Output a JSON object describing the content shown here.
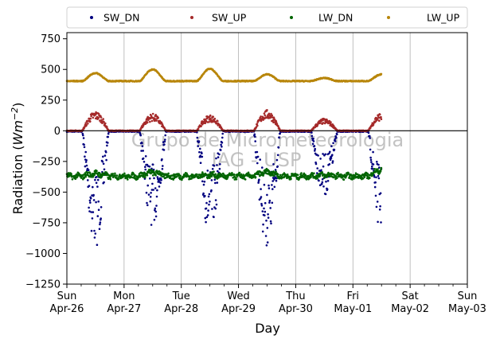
{
  "chart_data": {
    "type": "scatter",
    "title": "",
    "xlabel": "Day",
    "ylabel": "Radiation (Wm⁻²)",
    "ylabel_base": "Radiation (",
    "ylabel_unit": "Wm",
    "ylabel_exp": "−2",
    "ylabel_close": ")",
    "ylim": [
      -1250,
      800
    ],
    "yticks": [
      750,
      500,
      250,
      0,
      -250,
      -500,
      -750,
      -1000,
      -1250
    ],
    "ytick_labels": [
      "750",
      "500",
      "250",
      "0",
      "−250",
      "−500",
      "−750",
      "−1000",
      "−1250"
    ],
    "xlim_days": [
      0,
      7
    ],
    "xticks": [
      {
        "day": "Sun",
        "date": "Apr-26"
      },
      {
        "day": "Mon",
        "date": "Apr-27"
      },
      {
        "day": "Tue",
        "date": "Apr-28"
      },
      {
        "day": "Wed",
        "date": "Apr-29"
      },
      {
        "day": "Thu",
        "date": "Apr-30"
      },
      {
        "day": "Fri",
        "date": "May-01"
      },
      {
        "day": "Sat",
        "date": "May-02"
      },
      {
        "day": "Sun",
        "date": "May-03"
      }
    ],
    "grid": "vertical",
    "zero_line": 0,
    "legend_position": "top, above plot",
    "watermark": [
      "Grupo de Micrometeorologia",
      "IAG - USP"
    ],
    "data_end_day": 5.5,
    "series": [
      {
        "name": "SW_DN",
        "color": "#00007f",
        "night_value": -5,
        "noon_peaks": [
          -950,
          -780,
          -860,
          -950,
          -540,
          -830
        ]
      },
      {
        "name": "SW_UP",
        "color": "#a52a2a",
        "night_value": 0,
        "noon_peaks": [
          160,
          140,
          130,
          170,
          100,
          150
        ]
      },
      {
        "name": "LW_DN",
        "color": "#006400",
        "base": -370,
        "noon_peaks": [
          -350,
          -340,
          -360,
          -340,
          -360,
          -320
        ]
      },
      {
        "name": "LW_UP",
        "color": "#b8860b",
        "base": 405,
        "noon_peaks": [
          470,
          500,
          505,
          460,
          430,
          460
        ]
      }
    ]
  }
}
